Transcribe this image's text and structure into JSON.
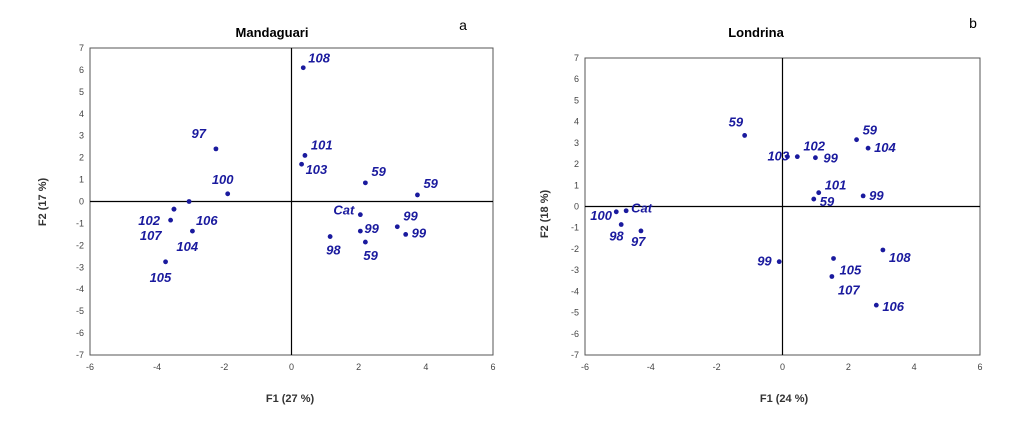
{
  "chart_data": [
    {
      "type": "scatter",
      "title": "Mandaguari",
      "panel_letter": "a",
      "xlabel": "F1 (27 %)",
      "ylabel": "F2 (17 %)",
      "xlim": [
        -6,
        6
      ],
      "ylim": [
        -7,
        7
      ],
      "xticks": [
        -6,
        -4,
        -2,
        0,
        2,
        4,
        6
      ],
      "yticks": [
        -7,
        -6,
        -5,
        -4,
        -3,
        -2,
        -1,
        0,
        1,
        2,
        3,
        4,
        5,
        6,
        7
      ],
      "color": "#1a1a9e",
      "points": [
        {
          "x": 0.35,
          "y": 6.1,
          "label": "108"
        },
        {
          "x": -2.25,
          "y": 2.4,
          "label": "97"
        },
        {
          "x": 0.4,
          "y": 2.1,
          "label": "101"
        },
        {
          "x": 0.3,
          "y": 1.7,
          "label": "103"
        },
        {
          "x": -1.9,
          "y": 0.35,
          "label": "100"
        },
        {
          "x": 2.2,
          "y": 0.85,
          "label": "59"
        },
        {
          "x": 3.75,
          "y": 0.3,
          "label": "59"
        },
        {
          "x": -3.05,
          "y": 0.0,
          "label": ""
        },
        {
          "x": -3.5,
          "y": -0.35,
          "label": "102"
        },
        {
          "x": -3.5,
          "y": -0.35,
          "label": "106"
        },
        {
          "x": -3.6,
          "y": -0.85,
          "label": "107"
        },
        {
          "x": -2.95,
          "y": -1.35,
          "label": "104"
        },
        {
          "x": -3.75,
          "y": -2.75,
          "label": "105"
        },
        {
          "x": 2.05,
          "y": -0.6,
          "label": "Cat"
        },
        {
          "x": 2.05,
          "y": -1.35,
          "label": "99"
        },
        {
          "x": 3.15,
          "y": -1.15,
          "label": "99"
        },
        {
          "x": 3.4,
          "y": -1.5,
          "label": "99"
        },
        {
          "x": 1.15,
          "y": -1.6,
          "label": "98"
        },
        {
          "x": 2.2,
          "y": -1.85,
          "label": "59"
        }
      ]
    },
    {
      "type": "scatter",
      "title": "Londrina",
      "panel_letter": "b",
      "xlabel": "F1 (24 %)",
      "ylabel": "F2 (18 %)",
      "xlim": [
        -6,
        6
      ],
      "ylim": [
        -7,
        7
      ],
      "xticks": [
        -6,
        -4,
        -2,
        0,
        2,
        4,
        6
      ],
      "yticks": [
        -7,
        -6,
        -5,
        -4,
        -3,
        -2,
        -1,
        0,
        1,
        2,
        3,
        4,
        5,
        6,
        7
      ],
      "color": "#1a1a9e",
      "points": [
        {
          "x": -1.15,
          "y": 3.35,
          "label": "59"
        },
        {
          "x": 0.15,
          "y": 2.35,
          "label": "103"
        },
        {
          "x": 0.45,
          "y": 2.35,
          "label": "102"
        },
        {
          "x": 1.0,
          "y": 2.3,
          "label": "99"
        },
        {
          "x": 2.25,
          "y": 3.15,
          "label": "59"
        },
        {
          "x": 2.6,
          "y": 2.75,
          "label": "104"
        },
        {
          "x": 1.1,
          "y": 0.65,
          "label": "101"
        },
        {
          "x": 2.45,
          "y": 0.5,
          "label": "99"
        },
        {
          "x": 0.95,
          "y": 0.35,
          "label": "59"
        },
        {
          "x": -5.05,
          "y": -0.25,
          "label": "100"
        },
        {
          "x": -4.75,
          "y": -0.2,
          "label": "Cat"
        },
        {
          "x": -4.9,
          "y": -0.85,
          "label": "98"
        },
        {
          "x": -4.3,
          "y": -1.15,
          "label": "97"
        },
        {
          "x": -0.1,
          "y": -2.6,
          "label": "99"
        },
        {
          "x": 1.55,
          "y": -2.45,
          "label": "105"
        },
        {
          "x": 1.5,
          "y": -3.3,
          "label": "107"
        },
        {
          "x": 3.05,
          "y": -2.05,
          "label": "108"
        },
        {
          "x": 2.85,
          "y": -4.65,
          "label": "106"
        }
      ]
    }
  ]
}
